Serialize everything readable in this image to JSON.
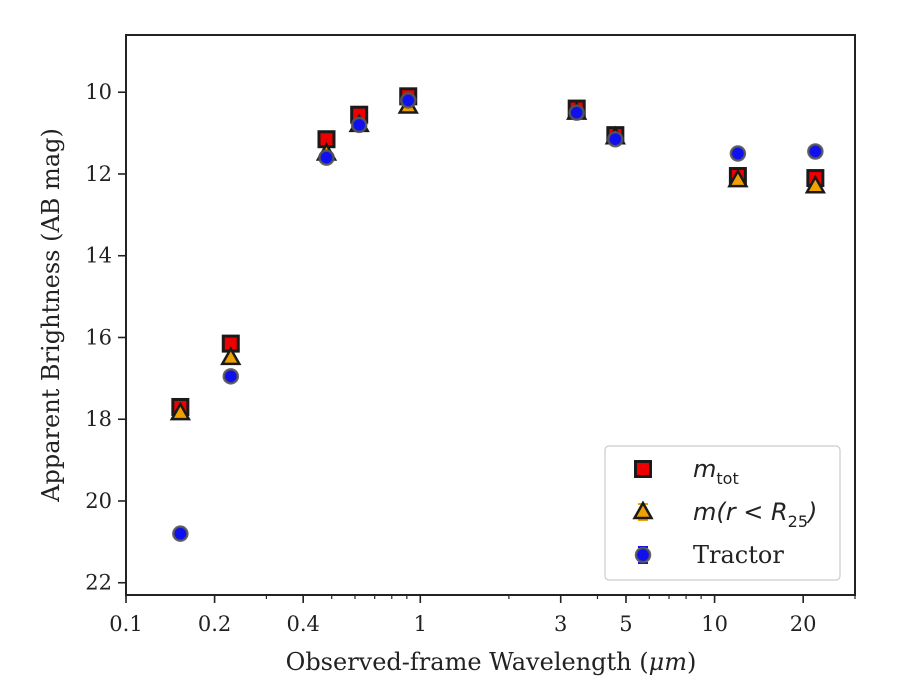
{
  "chart_data": {
    "type": "scatter",
    "xlabel_prefix": "Observed-frame Wavelength (",
    "xlabel_unit": "μm",
    "xlabel_suffix": ")",
    "ylabel": "Apparent Brightness (AB mag)",
    "xscale": "log",
    "xlim": [
      0.1,
      30
    ],
    "ylim": [
      22.3,
      8.6
    ],
    "y_inverted": true,
    "x_ticks": [
      0.1,
      0.2,
      0.4,
      1,
      3,
      5,
      10,
      20
    ],
    "x_tick_labels": [
      "0.1",
      "0.2",
      "0.4",
      "1",
      "3",
      "5",
      "10",
      "20"
    ],
    "y_ticks": [
      10,
      12,
      14,
      16,
      18,
      20,
      22
    ],
    "y_tick_labels": [
      "10",
      "12",
      "14",
      "16",
      "18",
      "20",
      "22"
    ],
    "grid": false,
    "legend_position": "lower-right",
    "series": [
      {
        "legend_parts": [
          "m",
          "tot",
          ""
        ],
        "marker": "square",
        "color": "#ee0000",
        "edge": "#1a1a1a",
        "points": [
          [
            0.153,
            17.7
          ],
          [
            0.227,
            16.15
          ],
          [
            0.48,
            11.15
          ],
          [
            0.62,
            10.55
          ],
          [
            0.91,
            10.1
          ],
          [
            3.4,
            10.4
          ],
          [
            4.6,
            11.05
          ],
          [
            12.0,
            12.05
          ],
          [
            22.0,
            12.1
          ]
        ]
      },
      {
        "legend_parts": [
          "m(r < R",
          "25",
          ")"
        ],
        "marker": "triangle",
        "color": "#f0a000",
        "edge": "#1a1a1a",
        "points": [
          [
            0.153,
            17.85
          ],
          [
            0.227,
            16.5
          ],
          [
            0.48,
            11.5
          ],
          [
            0.62,
            10.8
          ],
          [
            0.91,
            10.35
          ],
          [
            3.4,
            10.5
          ],
          [
            4.6,
            11.1
          ],
          [
            12.0,
            12.15
          ],
          [
            22.0,
            12.3
          ]
        ]
      },
      {
        "legend_parts": [
          "Tractor",
          "",
          ""
        ],
        "marker": "circle",
        "color": "#1010ee",
        "edge": "#555555",
        "points": [
          [
            0.153,
            20.8
          ],
          [
            0.227,
            16.95
          ],
          [
            0.48,
            11.6
          ],
          [
            0.62,
            10.8
          ],
          [
            0.91,
            10.2
          ],
          [
            3.4,
            10.5
          ],
          [
            4.6,
            11.15
          ],
          [
            12.0,
            11.5
          ],
          [
            22.0,
            11.45
          ]
        ]
      }
    ]
  }
}
